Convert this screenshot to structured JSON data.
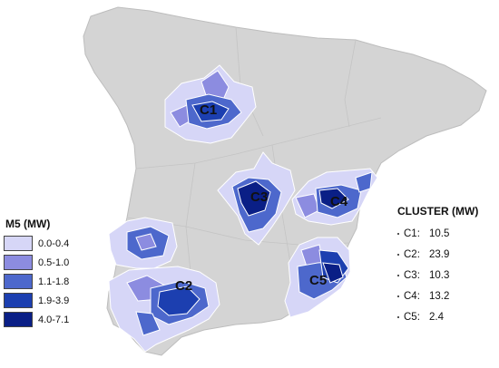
{
  "map": {
    "cluster_labels": [
      "C1",
      "C2",
      "C3",
      "C4",
      "C5"
    ],
    "colors": {
      "land": "#d4d4d4",
      "border": "#bdbdbd",
      "sea": "#ffffff",
      "level_0": "#d6d6f7",
      "level_1": "#8c8ce0",
      "level_2": "#4d68cc",
      "level_3": "#1c3fb0",
      "level_4": "#0a1f86"
    }
  },
  "legend_m5": {
    "title": "M5 (MW)",
    "items": [
      {
        "label": "0.0-0.4",
        "color": "#d6d6f7"
      },
      {
        "label": "0.5-1.0",
        "color": "#8c8ce0"
      },
      {
        "label": "1.1-1.8",
        "color": "#4d68cc"
      },
      {
        "label": "1.9-3.9",
        "color": "#1c3fb0"
      },
      {
        "label": "4.0-7.1",
        "color": "#0a1f86"
      }
    ]
  },
  "legend_cluster": {
    "title": "CLUSTER (MW)",
    "items": [
      {
        "id": "C1:",
        "value": "10.5"
      },
      {
        "id": "C2:",
        "value": "23.9"
      },
      {
        "id": "C3:",
        "value": "10.3"
      },
      {
        "id": "C4:",
        "value": "13.2"
      },
      {
        "id": "C5:",
        "value": "2.4"
      }
    ]
  }
}
